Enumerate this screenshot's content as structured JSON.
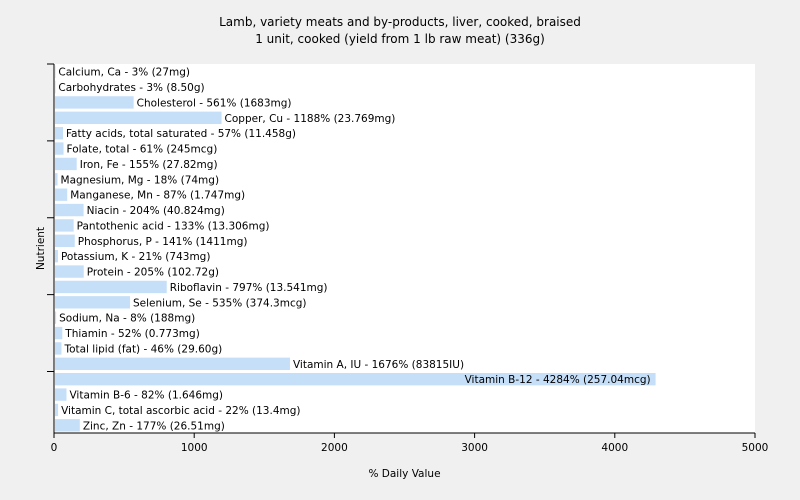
{
  "chart_data": {
    "type": "bar",
    "orientation": "horizontal",
    "title": "Lamb, variety meats and by-products, liver, cooked, braised",
    "subtitle": "1 unit, cooked (yield from 1 lb raw meat) (336g)",
    "xlabel": "% Daily Value",
    "ylabel": "Nutrient",
    "xlim": [
      0,
      5000
    ],
    "xticks": [
      "0",
      "1000",
      "2000",
      "3000",
      "4000",
      "5000"
    ],
    "grid": false,
    "legend": "none",
    "colors": {
      "bar": "#c6dff9",
      "background": "#f0f0f0",
      "plot_background": "#ffffff",
      "axis": "#000000"
    },
    "categories": [
      "Calcium, Ca",
      "Carbohydrates",
      "Cholesterol",
      "Copper, Cu",
      "Fatty acids, total saturated",
      "Folate, total",
      "Iron, Fe",
      "Magnesium, Mg",
      "Manganese, Mn",
      "Niacin",
      "Pantothenic acid",
      "Phosphorus, P",
      "Potassium, K",
      "Protein",
      "Riboflavin",
      "Selenium, Se",
      "Sodium, Na",
      "Thiamin",
      "Total lipid (fat)",
      "Vitamin A, IU",
      "Vitamin B-12",
      "Vitamin B-6",
      "Vitamin C, total ascorbic acid",
      "Zinc, Zn"
    ],
    "values": [
      3,
      3,
      561,
      1188,
      57,
      61,
      155,
      18,
      87,
      204,
      133,
      141,
      21,
      205,
      797,
      535,
      8,
      52,
      46,
      1676,
      4284,
      82,
      22,
      177
    ],
    "labels": [
      "Calcium, Ca - 3% (27mg)",
      "Carbohydrates - 3% (8.50g)",
      "Cholesterol - 561% (1683mg)",
      "Copper, Cu - 1188% (23.769mg)",
      "Fatty acids, total saturated - 57% (11.458g)",
      "Folate, total - 61% (245mcg)",
      "Iron, Fe - 155% (27.82mg)",
      "Magnesium, Mg - 18% (74mg)",
      "Manganese, Mn - 87% (1.747mg)",
      "Niacin - 204% (40.824mg)",
      "Pantothenic acid - 133% (13.306mg)",
      "Phosphorus, P - 141% (1411mg)",
      "Potassium, K - 21% (743mg)",
      "Protein - 205% (102.72g)",
      "Riboflavin - 797% (13.541mg)",
      "Selenium, Se - 535% (374.3mcg)",
      "Sodium, Na - 8% (188mg)",
      "Thiamin - 52% (0.773mg)",
      "Total lipid (fat) - 46% (29.60g)",
      "Vitamin A, IU - 1676% (83815IU)",
      "Vitamin B-12 - 4284% (257.04mcg)",
      "Vitamin B-6 - 82% (1.646mg)",
      "Vitamin C, total ascorbic acid - 22% (13.4mg)",
      "Zinc, Zn - 177% (26.51mg)"
    ]
  }
}
